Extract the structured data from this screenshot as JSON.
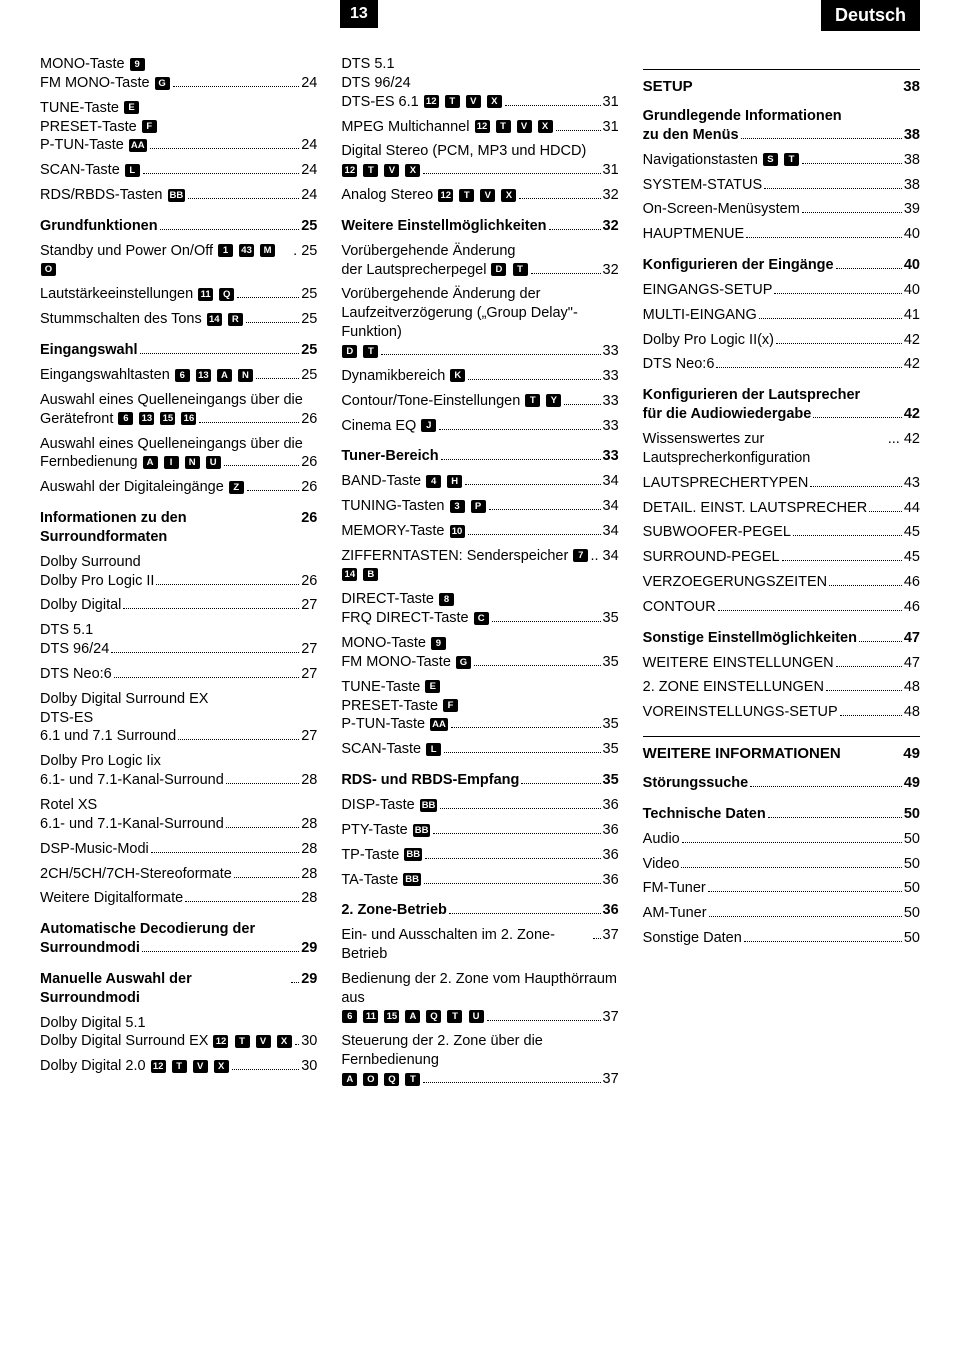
{
  "page_number": "13",
  "language_label": "Deutsch",
  "col1": [
    {
      "type": "multi",
      "lines": [
        "MONO-Taste [9]",
        "FM MONO-Taste [G]"
      ],
      "page": "24"
    },
    {
      "type": "multi",
      "lines": [
        "TUNE-Taste [E]",
        "PRESET-Taste [F]",
        "P-TUN-Taste [AA]"
      ],
      "page": "24"
    },
    {
      "type": "entry",
      "text": "SCAN-Taste [L]",
      "page": "24"
    },
    {
      "type": "entry",
      "text": "RDS/RBDS-Tasten [BB]",
      "page": "24"
    },
    {
      "type": "section",
      "text": "Grundfunktionen",
      "page": "25"
    },
    {
      "type": "entry",
      "text": "Standby und Power On/Off [1] [43] [M] [O]",
      "page": ". 25",
      "nodots": true
    },
    {
      "type": "entry",
      "text": "Lautstärkeeinstellungen [11] [Q]",
      "page": "25"
    },
    {
      "type": "entry",
      "text": "Stummschalten des Tons [14] [R]",
      "page": "25"
    },
    {
      "type": "section",
      "text": "Eingangswahl",
      "page": "25"
    },
    {
      "type": "entry",
      "text": "Eingangswahltasten [6] [13] [A] [N]",
      "page": "25"
    },
    {
      "type": "multi",
      "lines": [
        "Auswahl eines Quelleneingangs über die",
        "Gerätefront [6] [13] [15] [16]"
      ],
      "page": "26"
    },
    {
      "type": "multi",
      "lines": [
        "Auswahl eines Quelleneingangs über die",
        "Fernbedienung [A] [I] [N] [U]"
      ],
      "page": "26"
    },
    {
      "type": "entry",
      "text": "Auswahl der Digitaleingänge [Z]",
      "page": "26"
    },
    {
      "type": "section",
      "text": "Informationen zu den Surroundformaten",
      "page": "26",
      "nodots": true,
      "tight": true
    },
    {
      "type": "multi",
      "lines": [
        "Dolby Surround",
        "Dolby Pro Logic II"
      ],
      "page": "26"
    },
    {
      "type": "entry",
      "text": "Dolby Digital",
      "page": "27"
    },
    {
      "type": "multi",
      "lines": [
        "DTS 5.1",
        "DTS 96/24"
      ],
      "page": "27"
    },
    {
      "type": "entry",
      "text": "DTS Neo:6",
      "page": "27"
    },
    {
      "type": "multi",
      "lines": [
        "Dolby Digital Surround EX",
        "DTS-ES",
        "6.1 und 7.1 Surround"
      ],
      "page": "27"
    },
    {
      "type": "multi",
      "lines": [
        "Dolby Pro Logic Iix",
        "6.1- und 7.1-Kanal-Surround"
      ],
      "page": "28"
    },
    {
      "type": "multi",
      "lines": [
        "Rotel XS",
        "6.1- und 7.1-Kanal-Surround"
      ],
      "page": "28"
    },
    {
      "type": "entry",
      "text": "DSP-Music-Modi",
      "page": "28"
    },
    {
      "type": "entry",
      "text": "2CH/5CH/7CH-Stereoformate",
      "page": "28"
    },
    {
      "type": "entry",
      "text": "Weitere Digitalformate",
      "page": "28"
    },
    {
      "type": "section",
      "text": "Automatische Decodierung der Surroundmodi",
      "page": "29",
      "wrap": true
    },
    {
      "type": "section",
      "text": "Manuelle Auswahl der Surroundmodi",
      "page": "29"
    },
    {
      "type": "multi",
      "lines": [
        "Dolby Digital 5.1",
        "Dolby Digital Surround EX [12] [T] [V] [X]"
      ],
      "page": "30",
      "tightdots": true
    },
    {
      "type": "entry",
      "text": "Dolby Digital 2.0 [12] [T] [V] [X]",
      "page": "30"
    }
  ],
  "col2": [
    {
      "type": "multi",
      "lines": [
        "DTS 5.1",
        "DTS 96/24",
        "DTS-ES 6.1 [12] [T] [V] [X]"
      ],
      "page": "31"
    },
    {
      "type": "entry",
      "text": "MPEG Multichannel [12] [T] [V] [X]",
      "page": "31"
    },
    {
      "type": "multi",
      "lines": [
        "Digital Stereo (PCM, MP3 und HDCD)",
        "[12] [T] [V] [X]"
      ],
      "page": "31"
    },
    {
      "type": "entry",
      "text": "Analog Stereo [12] [T] [V] [X]",
      "page": "32"
    },
    {
      "type": "section",
      "text": "Weitere Einstellmöglichkeiten",
      "page": "32"
    },
    {
      "type": "multi",
      "lines": [
        "Vorübergehende Änderung",
        "der Lautsprecherpegel [D] [T]"
      ],
      "page": "32"
    },
    {
      "type": "multi",
      "lines": [
        "Vorübergehende Änderung der",
        "Laufzeitverzögerung („Group Delay\"-Funktion)",
        "[D] [T]"
      ],
      "page": "33"
    },
    {
      "type": "entry",
      "text": "Dynamikbereich [K]",
      "page": "33"
    },
    {
      "type": "entry",
      "text": "Contour/Tone-Einstellungen [T] [Y]",
      "page": "33"
    },
    {
      "type": "entry",
      "text": "Cinema EQ [J]",
      "page": "33"
    },
    {
      "type": "section",
      "text": "Tuner-Bereich",
      "page": "33"
    },
    {
      "type": "entry",
      "text": "BAND-Taste [4] [H]",
      "page": "34"
    },
    {
      "type": "entry",
      "text": "TUNING-Tasten [3] [P]",
      "page": "34"
    },
    {
      "type": "entry",
      "text": "MEMORY-Taste [10]",
      "page": "34"
    },
    {
      "type": "entry",
      "text": "ZIFFERNTASTEN: Senderspeicher [7] [14] [B]",
      "page": ".. 34",
      "nodots": true
    },
    {
      "type": "multi",
      "lines": [
        "DIRECT-Taste [8]",
        "FRQ DIRECT-Taste [C]"
      ],
      "page": "35"
    },
    {
      "type": "multi",
      "lines": [
        "MONO-Taste [9]",
        "FM MONO-Taste [G]"
      ],
      "page": "35"
    },
    {
      "type": "multi",
      "lines": [
        "TUNE-Taste [E]",
        "PRESET-Taste [F]",
        "P-TUN-Taste [AA]"
      ],
      "page": "35"
    },
    {
      "type": "entry",
      "text": "SCAN-Taste [L]",
      "page": "35"
    },
    {
      "type": "section",
      "text": "RDS- und RBDS-Empfang",
      "page": "35"
    },
    {
      "type": "entry",
      "text": "DISP-Taste [BB]",
      "page": "36"
    },
    {
      "type": "entry",
      "text": "PTY-Taste [BB]",
      "page": "36"
    },
    {
      "type": "entry",
      "text": "TP-Taste [BB]",
      "page": "36"
    },
    {
      "type": "entry",
      "text": "TA-Taste [BB]",
      "page": "36"
    },
    {
      "type": "section",
      "text": "2. Zone-Betrieb",
      "page": "36"
    },
    {
      "type": "entry",
      "text": "Ein- und Ausschalten im 2. Zone-Betrieb",
      "page": "37"
    },
    {
      "type": "multi",
      "lines": [
        "Bedienung der 2. Zone vom Haupthörraum aus",
        "[6] [11] [15] [A] [Q] [T] [U]"
      ],
      "page": "37"
    },
    {
      "type": "multi",
      "lines": [
        "Steuerung der 2. Zone über die Fernbedienung",
        "[A] [O] [Q] [T]"
      ],
      "page": "37"
    }
  ],
  "col3": [
    {
      "type": "title",
      "text": "SETUP",
      "page": "38"
    },
    {
      "type": "section",
      "text": "Grundlegende Informationen zu den Menüs",
      "page": "38",
      "wrap": true
    },
    {
      "type": "entry",
      "text": "Navigationstasten [S] [T]",
      "page": "38"
    },
    {
      "type": "entry",
      "text": "SYSTEM-STATUS",
      "page": "38"
    },
    {
      "type": "entry",
      "text": "On-Screen-Menüsystem",
      "page": "39"
    },
    {
      "type": "entry",
      "text": "HAUPTMENUE",
      "page": "40"
    },
    {
      "type": "section",
      "text": "Konfigurieren der Eingänge",
      "page": "40"
    },
    {
      "type": "entry",
      "text": "EINGANGS-SETUP",
      "page": "40"
    },
    {
      "type": "entry",
      "text": "MULTI-EINGANG",
      "page": "41"
    },
    {
      "type": "entry",
      "text": "Dolby Pro Logic II(x)",
      "page": "42"
    },
    {
      "type": "entry",
      "text": "DTS Neo:6",
      "page": "42"
    },
    {
      "type": "section",
      "text": "Konfigurieren der Lautsprecher für die Audiowiedergabe",
      "page": "42",
      "wrap": true
    },
    {
      "type": "entry",
      "text": "Wissenswertes zur Lautsprecherkonfiguration",
      "page": "... 42",
      "nodots": true
    },
    {
      "type": "entry",
      "text": "LAUTSPRECHERTYPEN",
      "page": "43"
    },
    {
      "type": "entry",
      "text": "DETAIL. EINST. LAUTSPRECHER",
      "page": "44"
    },
    {
      "type": "entry",
      "text": "SUBWOOFER-PEGEL",
      "page": "45"
    },
    {
      "type": "entry",
      "text": "SURROUND-PEGEL",
      "page": "45"
    },
    {
      "type": "entry",
      "text": "VERZOEGERUNGSZEITEN",
      "page": "46"
    },
    {
      "type": "entry",
      "text": "CONTOUR",
      "page": "46"
    },
    {
      "type": "section",
      "text": "Sonstige Einstellmöglichkeiten",
      "page": "47"
    },
    {
      "type": "entry",
      "text": "WEITERE EINSTELLUNGEN",
      "page": "47"
    },
    {
      "type": "entry",
      "text": "2. ZONE EINSTELLUNGEN",
      "page": "48"
    },
    {
      "type": "entry",
      "text": "VOREINSTELLUNGS-SETUP",
      "page": "48"
    },
    {
      "type": "title",
      "text": "WEITERE INFORMATIONEN",
      "page": "49"
    },
    {
      "type": "section",
      "text": "Störungssuche",
      "page": "49"
    },
    {
      "type": "section",
      "text": "Technische Daten",
      "page": "50"
    },
    {
      "type": "entry",
      "text": "Audio",
      "page": "50"
    },
    {
      "type": "entry",
      "text": "Video",
      "page": "50"
    },
    {
      "type": "entry",
      "text": "FM-Tuner",
      "page": "50"
    },
    {
      "type": "entry",
      "text": "AM-Tuner",
      "page": "50"
    },
    {
      "type": "entry",
      "text": "Sonstige Daten",
      "page": "50"
    }
  ]
}
